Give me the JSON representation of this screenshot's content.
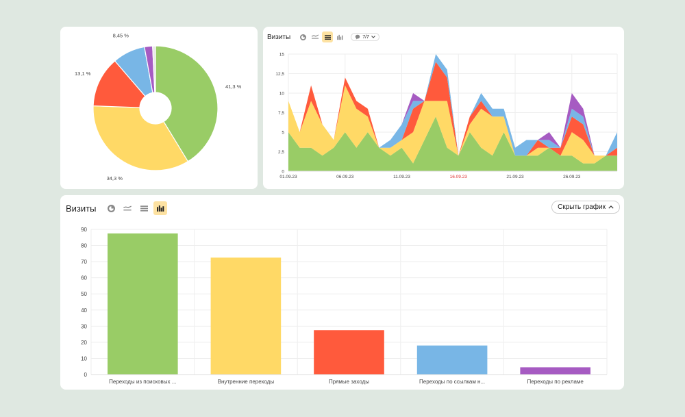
{
  "colors": {
    "green": "#99cc66",
    "yellow": "#ffd966",
    "red": "#ff5a3c",
    "blue": "#78b6e6",
    "purple": "#a65bc2",
    "grid": "#eeeeee",
    "axis_text": "#444444",
    "highlight_date": "#e03030",
    "active_button": "#fde2a2"
  },
  "area_panel": {
    "title": "Визиты",
    "series_badge": "7/7",
    "icons": [
      "pie-icon",
      "line-icon",
      "stacked-area-icon",
      "bar-icon"
    ],
    "active_icon": "stacked-area-icon"
  },
  "bar_panel": {
    "title": "Визиты",
    "icons": [
      "pie-icon",
      "line-icon",
      "stacked-area-icon",
      "bar-icon"
    ],
    "active_icon": "bar-icon",
    "hide_chart_label": "Скрыть график"
  },
  "chart_data": [
    {
      "type": "pie",
      "donut": true,
      "slices": [
        {
          "label": "41,3 %",
          "value": 41.3,
          "color": "#99cc66"
        },
        {
          "label": "34,3 %",
          "value": 34.3,
          "color": "#ffd966"
        },
        {
          "label": "13,1 %",
          "value": 13.1,
          "color": "#ff5a3c"
        },
        {
          "label": "8,45 %",
          "value": 8.45,
          "color": "#78b6e6"
        },
        {
          "label": "",
          "value": 2.1,
          "color": "#a65bc2"
        },
        {
          "label": "",
          "value": 0.75,
          "color": "#e8e8e8"
        }
      ]
    },
    {
      "type": "area",
      "stacked": true,
      "x": [
        "01.09.23",
        "02.09.23",
        "03.09.23",
        "04.09.23",
        "05.09.23",
        "06.09.23",
        "07.09.23",
        "08.09.23",
        "09.09.23",
        "10.09.23",
        "11.09.23",
        "12.09.23",
        "13.09.23",
        "14.09.23",
        "15.09.23",
        "16.09.23",
        "17.09.23",
        "18.09.23",
        "19.09.23",
        "20.09.23",
        "21.09.23",
        "22.09.23",
        "23.09.23",
        "24.09.23",
        "25.09.23",
        "26.09.23",
        "27.09.23",
        "28.09.23",
        "29.09.23",
        "30.09.23"
      ],
      "x_tick_labels": [
        "01.09.23",
        "06.09.23",
        "11.09.23",
        "16.09.23",
        "21.09.23",
        "26.09.23"
      ],
      "highlight_tick": "16.09.23",
      "y_ticks": [
        "0",
        "2,5",
        "5",
        "7,5",
        "10",
        "12,5",
        "15"
      ],
      "ylim": [
        0,
        15
      ],
      "series": [
        {
          "color": "#99cc66",
          "values": [
            5,
            3,
            3,
            2,
            3,
            5,
            3,
            5,
            3,
            2,
            3,
            1,
            4,
            7,
            3,
            2,
            5,
            3,
            2,
            5,
            2,
            2,
            2,
            3,
            2,
            2,
            1,
            1,
            2,
            2
          ]
        },
        {
          "color": "#ffd966",
          "values": [
            4,
            2,
            6,
            4,
            1,
            6,
            5,
            2,
            0,
            1,
            1,
            4,
            5,
            2,
            6,
            0,
            1,
            5,
            5,
            2,
            0,
            0,
            1,
            0,
            0,
            3,
            3,
            1,
            0,
            0
          ]
        },
        {
          "color": "#ff5a3c",
          "values": [
            0,
            0,
            2,
            0,
            0,
            1,
            1,
            1,
            0,
            0,
            0,
            3,
            0,
            5,
            3,
            0,
            1,
            1,
            0,
            0,
            0,
            0,
            1,
            0,
            1,
            2,
            2,
            0,
            0,
            1
          ]
        },
        {
          "color": "#78b6e6",
          "values": [
            0,
            0,
            0,
            0,
            0,
            0,
            0,
            0,
            0,
            1,
            2,
            1,
            0,
            1,
            1,
            0,
            0,
            1,
            1,
            1,
            1,
            2,
            0,
            1,
            0,
            1,
            1,
            0,
            0,
            2
          ]
        },
        {
          "color": "#a65bc2",
          "values": [
            0,
            0,
            0,
            0,
            0,
            0,
            0,
            0,
            0,
            0,
            0,
            1,
            0,
            0,
            0,
            0,
            0,
            0,
            0,
            0,
            0,
            0,
            0,
            1,
            0,
            2,
            1,
            0,
            0,
            0
          ]
        }
      ]
    },
    {
      "type": "bar",
      "categories": [
        "Переходы из поисковых ...",
        "Внутренние переходы",
        "Прямые заходы",
        "Переходы по ссылкам н...",
        "Переходы по рекламе"
      ],
      "values": [
        87.5,
        72.5,
        27.5,
        18,
        4.5
      ],
      "colors": [
        "#99cc66",
        "#ffd966",
        "#ff5a3c",
        "#78b6e6",
        "#a65bc2"
      ],
      "y_ticks": [
        "0",
        "10",
        "20",
        "30",
        "40",
        "50",
        "60",
        "70",
        "80",
        "90"
      ],
      "ylim": [
        0,
        90
      ]
    }
  ]
}
